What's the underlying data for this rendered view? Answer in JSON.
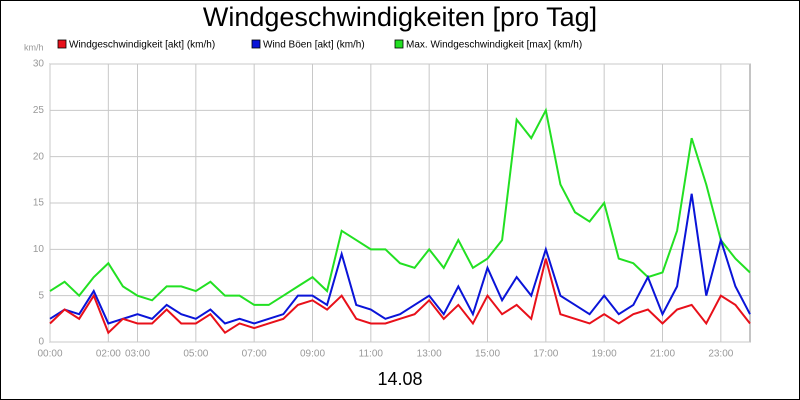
{
  "chart_data": {
    "type": "line",
    "title": "Windgeschwindigkeiten [pro Tag]",
    "x_label": "14.08",
    "y_unit": "km/h",
    "x": [
      0,
      0.5,
      1,
      1.5,
      2,
      2.5,
      3,
      3.5,
      4,
      4.5,
      5,
      5.5,
      6,
      6.5,
      7,
      7.5,
      8,
      8.5,
      9,
      9.5,
      10,
      10.5,
      11,
      11.5,
      12,
      12.5,
      13,
      13.5,
      14,
      14.5,
      15,
      15.5,
      16,
      16.5,
      17,
      17.5,
      18,
      18.5,
      19,
      19.5,
      20,
      20.5,
      21,
      21.5,
      22,
      22.5,
      23,
      23.5,
      24
    ],
    "series": [
      {
        "name": "Windgeschwindigkeit [akt] (km/h)",
        "color": "#e8101a",
        "values": [
          2,
          3.5,
          2.5,
          5,
          1,
          2.5,
          2,
          2,
          3.5,
          2,
          2,
          3,
          1,
          2,
          1.5,
          2,
          2.5,
          4,
          4.5,
          3.5,
          5,
          2.5,
          2,
          2,
          2.5,
          3,
          4.5,
          2.5,
          4,
          2,
          5,
          3,
          4,
          2.5,
          9,
          3,
          2.5,
          2,
          3,
          2,
          3,
          3.5,
          2,
          3.5,
          4,
          2,
          5,
          4,
          2
        ]
      },
      {
        "name": "Wind Böen [akt] (km/h)",
        "color": "#0a14d8",
        "values": [
          2.5,
          3.5,
          3,
          5.5,
          2,
          2.5,
          3,
          2.5,
          4,
          3,
          2.5,
          3.5,
          2,
          2.5,
          2,
          2.5,
          3,
          5,
          5,
          4,
          9.5,
          4,
          3.5,
          2.5,
          3,
          4,
          5,
          3,
          6,
          3,
          8,
          4.5,
          7,
          5,
          10,
          5,
          4,
          3,
          5,
          3,
          4,
          7,
          3,
          6,
          16,
          5,
          11,
          6,
          3
        ]
      },
      {
        "name": "Max. Windgeschwindigkeit [max] (km/h)",
        "color": "#22e022",
        "values": [
          5.5,
          6.5,
          5,
          7,
          8.5,
          6,
          5,
          4.5,
          6,
          6,
          5.5,
          6.5,
          5,
          5,
          4,
          4,
          5,
          6,
          7,
          5.5,
          12,
          11,
          10,
          10,
          8.5,
          8,
          10,
          8,
          11,
          8,
          9,
          11,
          24,
          22,
          25,
          17,
          14,
          13,
          15,
          9,
          8.5,
          7,
          7.5,
          12,
          22,
          17,
          11,
          9,
          7.5
        ]
      }
    ],
    "xlim": [
      0,
      24
    ],
    "xticks": [
      {
        "value": 0,
        "label": "00:00"
      },
      {
        "value": 2,
        "label": "02:00"
      },
      {
        "value": 3,
        "label": "03:00"
      },
      {
        "value": 5,
        "label": "05:00"
      },
      {
        "value": 7,
        "label": "07:00"
      },
      {
        "value": 9,
        "label": "09:00"
      },
      {
        "value": 11,
        "label": "11:00"
      },
      {
        "value": 13,
        "label": "13:00"
      },
      {
        "value": 15,
        "label": "15:00"
      },
      {
        "value": 17,
        "label": "17:00"
      },
      {
        "value": 19,
        "label": "19:00"
      },
      {
        "value": 21,
        "label": "21:00"
      },
      {
        "value": 23,
        "label": "23:00"
      }
    ],
    "ylim": [
      0,
      30
    ],
    "yticks": [
      0,
      5,
      10,
      15,
      20,
      25,
      30
    ],
    "grid": true
  }
}
